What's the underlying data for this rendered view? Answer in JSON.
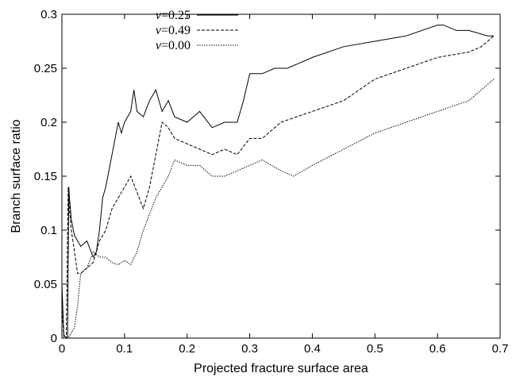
{
  "chart_data": {
    "type": "line",
    "xlabel": "Projected fracture surface area",
    "ylabel": "Branch surface ratio",
    "xlim": [
      0,
      0.7
    ],
    "ylim": [
      0,
      0.3
    ],
    "xticks": [
      "0",
      "0.1",
      "0.2",
      "0.3",
      "0.4",
      "0.5",
      "0.6",
      "0.7"
    ],
    "yticks": [
      "0",
      "0.05",
      "0.1",
      "0.15",
      "0.2",
      "0.25",
      "0.3"
    ],
    "grid": false,
    "legend_position": "top-left",
    "series": [
      {
        "name": "ν=0.25",
        "legend_symbol": "ν",
        "legend_value": "=0.25",
        "style": "solid",
        "x": [
          0.0,
          0.003,
          0.007,
          0.009,
          0.011,
          0.012,
          0.015,
          0.02,
          0.03,
          0.04,
          0.05,
          0.055,
          0.06,
          0.065,
          0.07,
          0.08,
          0.09,
          0.095,
          0.1,
          0.11,
          0.115,
          0.12,
          0.13,
          0.14,
          0.15,
          0.16,
          0.17,
          0.18,
          0.2,
          0.22,
          0.24,
          0.26,
          0.28,
          0.29,
          0.3,
          0.32,
          0.34,
          0.36,
          0.38,
          0.4,
          0.45,
          0.5,
          0.55,
          0.6,
          0.61,
          0.63,
          0.65,
          0.68,
          0.69
        ],
        "y": [
          0.05,
          0.003,
          0.0,
          0.001,
          0.14,
          0.13,
          0.11,
          0.095,
          0.085,
          0.09,
          0.075,
          0.08,
          0.1,
          0.13,
          0.14,
          0.17,
          0.2,
          0.19,
          0.2,
          0.21,
          0.23,
          0.21,
          0.205,
          0.22,
          0.23,
          0.21,
          0.22,
          0.205,
          0.2,
          0.21,
          0.195,
          0.2,
          0.2,
          0.22,
          0.245,
          0.245,
          0.25,
          0.25,
          0.255,
          0.26,
          0.27,
          0.275,
          0.28,
          0.29,
          0.29,
          0.285,
          0.285,
          0.28,
          0.28
        ]
      },
      {
        "name": "ν=0.49",
        "legend_symbol": "ν",
        "legend_value": "=0.49",
        "style": "dashed",
        "x": [
          0.0,
          0.003,
          0.007,
          0.01,
          0.012,
          0.015,
          0.02,
          0.025,
          0.03,
          0.04,
          0.05,
          0.055,
          0.06,
          0.07,
          0.08,
          0.1,
          0.11,
          0.13,
          0.14,
          0.15,
          0.16,
          0.17,
          0.18,
          0.2,
          0.22,
          0.24,
          0.26,
          0.28,
          0.3,
          0.32,
          0.35,
          0.4,
          0.45,
          0.5,
          0.55,
          0.6,
          0.65,
          0.67,
          0.69
        ],
        "y": [
          0.03,
          0.0,
          0.0,
          0.14,
          0.12,
          0.1,
          0.08,
          0.06,
          0.06,
          0.065,
          0.07,
          0.08,
          0.09,
          0.1,
          0.12,
          0.14,
          0.15,
          0.12,
          0.14,
          0.17,
          0.2,
          0.195,
          0.185,
          0.18,
          0.175,
          0.17,
          0.175,
          0.17,
          0.185,
          0.185,
          0.2,
          0.21,
          0.22,
          0.24,
          0.25,
          0.26,
          0.265,
          0.27,
          0.28
        ]
      },
      {
        "name": "ν=0.00",
        "legend_symbol": "ν",
        "legend_value": "=0.00",
        "style": "dotted",
        "x": [
          0.0,
          0.01,
          0.015,
          0.02,
          0.025,
          0.03,
          0.04,
          0.05,
          0.06,
          0.07,
          0.08,
          0.09,
          0.1,
          0.11,
          0.12,
          0.13,
          0.15,
          0.17,
          0.18,
          0.2,
          0.22,
          0.24,
          0.26,
          0.28,
          0.3,
          0.32,
          0.35,
          0.37,
          0.4,
          0.45,
          0.5,
          0.55,
          0.6,
          0.65,
          0.69
        ],
        "y": [
          0.0,
          0.0,
          0.005,
          0.01,
          0.03,
          0.06,
          0.065,
          0.08,
          0.075,
          0.075,
          0.07,
          0.068,
          0.072,
          0.068,
          0.08,
          0.1,
          0.13,
          0.15,
          0.165,
          0.16,
          0.16,
          0.15,
          0.15,
          0.155,
          0.16,
          0.165,
          0.155,
          0.15,
          0.16,
          0.175,
          0.19,
          0.2,
          0.21,
          0.22,
          0.24
        ]
      }
    ]
  }
}
